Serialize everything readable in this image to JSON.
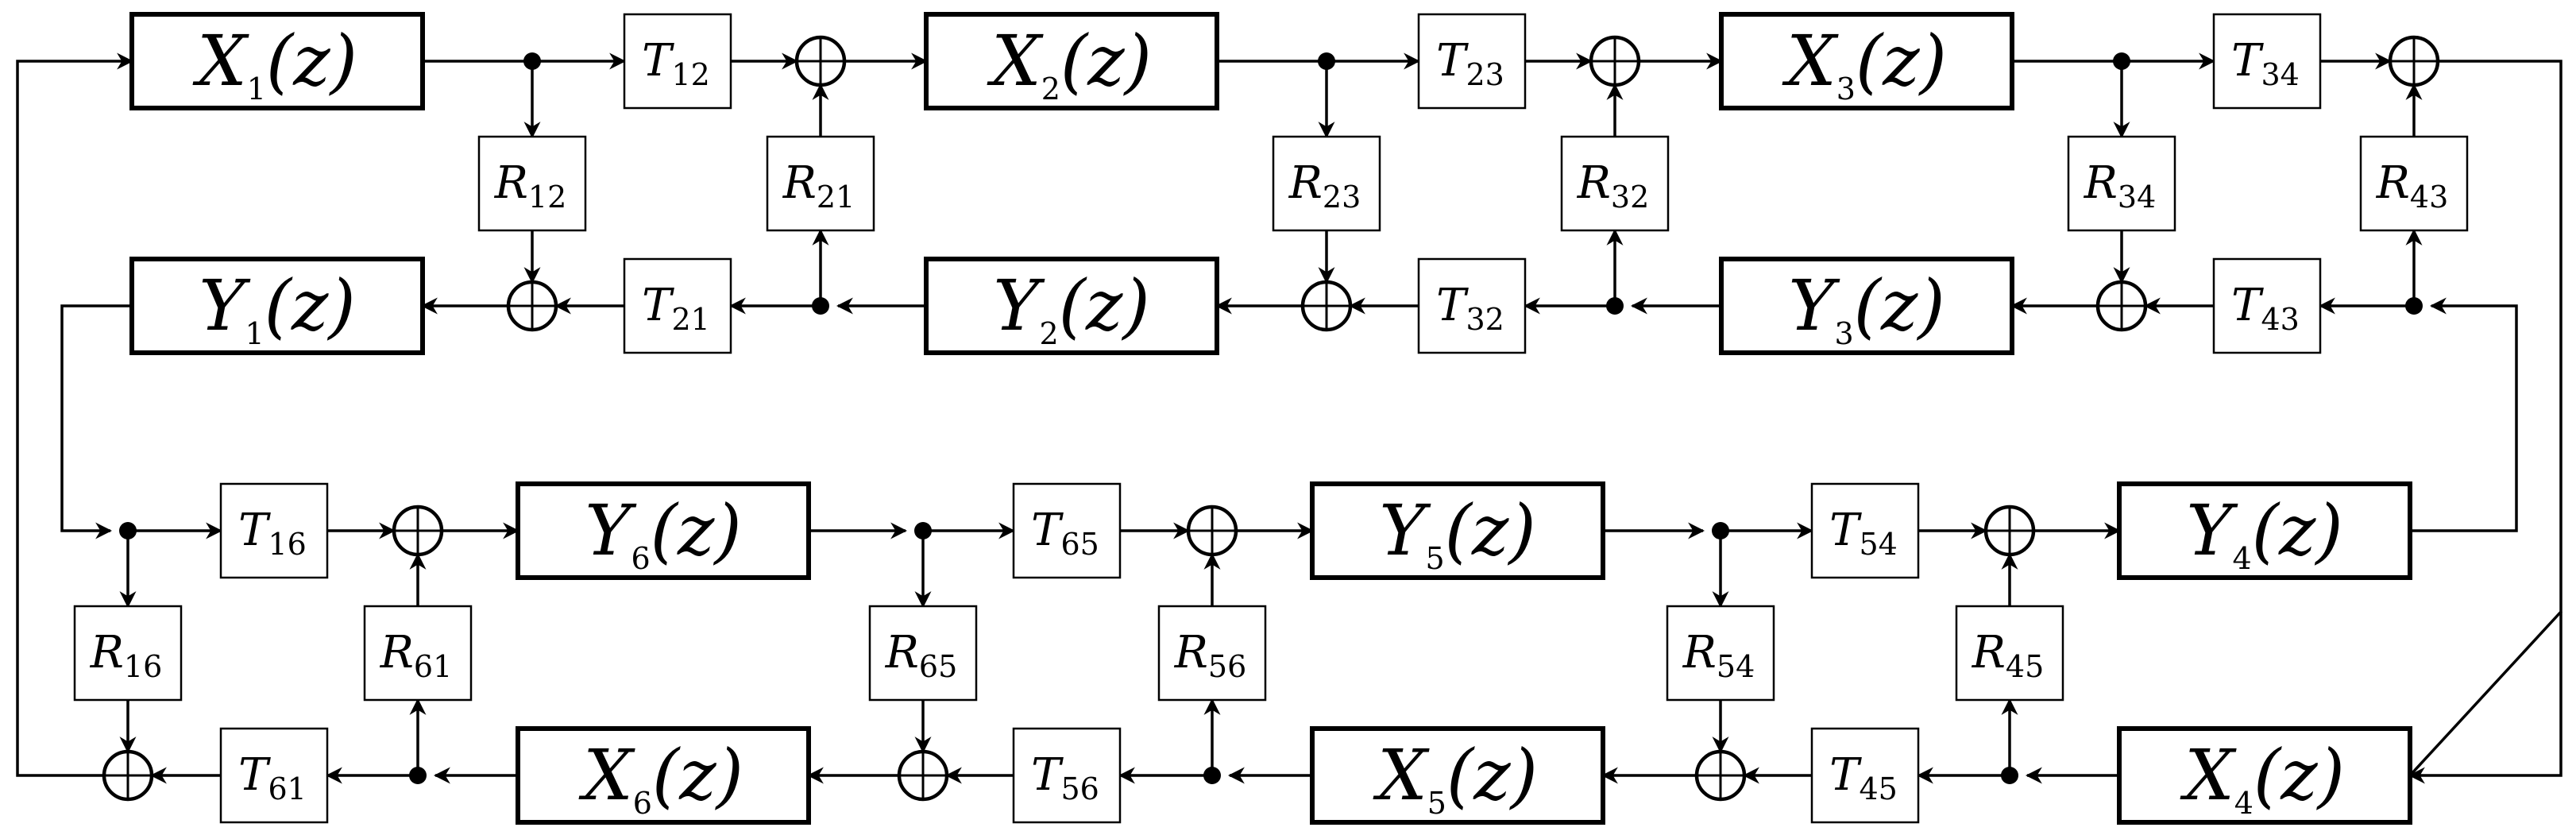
{
  "blocks": {
    "X1": {
      "sym": "X",
      "sub": "1",
      "arg": "(z)"
    },
    "X2": {
      "sym": "X",
      "sub": "2",
      "arg": "(z)"
    },
    "X3": {
      "sym": "X",
      "sub": "3",
      "arg": "(z)"
    },
    "X4": {
      "sym": "X",
      "sub": "4",
      "arg": "(z)"
    },
    "X5": {
      "sym": "X",
      "sub": "5",
      "arg": "(z)"
    },
    "X6": {
      "sym": "X",
      "sub": "6",
      "arg": "(z)"
    },
    "Y1": {
      "sym": "Y",
      "sub": "1",
      "arg": "(z)"
    },
    "Y2": {
      "sym": "Y",
      "sub": "2",
      "arg": "(z)"
    },
    "Y3": {
      "sym": "Y",
      "sub": "3",
      "arg": "(z)"
    },
    "Y4": {
      "sym": "Y",
      "sub": "4",
      "arg": "(z)"
    },
    "Y5": {
      "sym": "Y",
      "sub": "5",
      "arg": "(z)"
    },
    "Y6": {
      "sym": "Y",
      "sub": "6",
      "arg": "(z)"
    }
  },
  "gains": {
    "T12": {
      "sym": "T",
      "sub": "12"
    },
    "T23": {
      "sym": "T",
      "sub": "23"
    },
    "T34": {
      "sym": "T",
      "sub": "34"
    },
    "T21": {
      "sym": "T",
      "sub": "21"
    },
    "T32": {
      "sym": "T",
      "sub": "32"
    },
    "T43": {
      "sym": "T",
      "sub": "43"
    },
    "T16": {
      "sym": "T",
      "sub": "16"
    },
    "T65": {
      "sym": "T",
      "sub": "65"
    },
    "T54": {
      "sym": "T",
      "sub": "54"
    },
    "T61": {
      "sym": "T",
      "sub": "61"
    },
    "T56": {
      "sym": "T",
      "sub": "56"
    },
    "T45": {
      "sym": "T",
      "sub": "45"
    },
    "R12": {
      "sym": "R",
      "sub": "12"
    },
    "R21": {
      "sym": "R",
      "sub": "21"
    },
    "R23": {
      "sym": "R",
      "sub": "23"
    },
    "R32": {
      "sym": "R",
      "sub": "32"
    },
    "R34": {
      "sym": "R",
      "sub": "34"
    },
    "R43": {
      "sym": "R",
      "sub": "43"
    },
    "R16": {
      "sym": "R",
      "sub": "16"
    },
    "R61": {
      "sym": "R",
      "sub": "61"
    },
    "R65": {
      "sym": "R",
      "sub": "65"
    },
    "R56": {
      "sym": "R",
      "sub": "56"
    },
    "R54": {
      "sym": "R",
      "sub": "54"
    },
    "R45": {
      "sym": "R",
      "sub": "45"
    }
  }
}
